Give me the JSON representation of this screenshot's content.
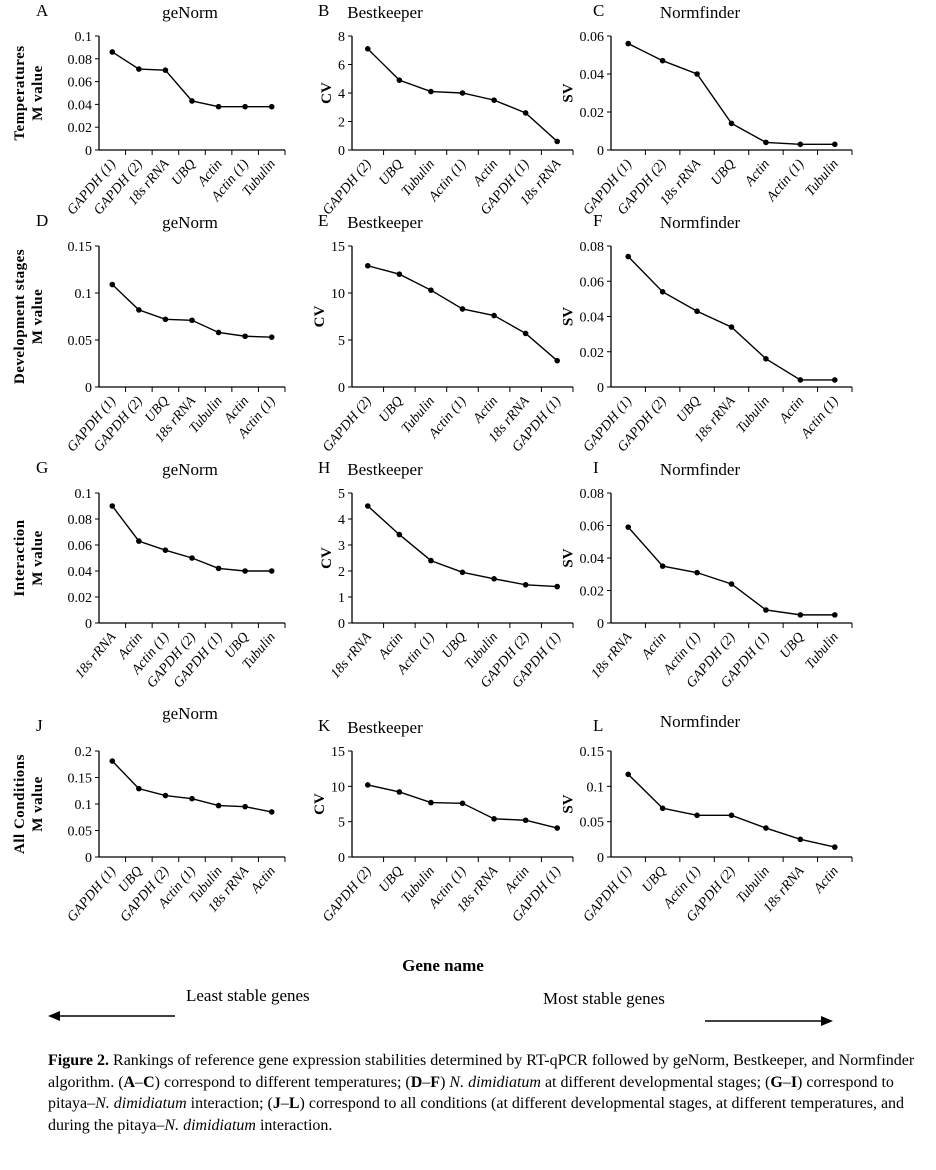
{
  "figure": {
    "gene_axis_label": "Gene name",
    "least_stable": "Least stable genes",
    "most_stable": "Most stable genes",
    "caption": [
      {
        "t": "Figure 2.",
        "s": "b"
      },
      {
        "t": "  Rankings of reference gene expression stabilities determined by RT-qPCR followed by geNorm, Bestkeeper, and Normfinder algorithm. (",
        "s": ""
      },
      {
        "t": "A",
        "s": "b"
      },
      {
        "t": "–",
        "s": ""
      },
      {
        "t": "C",
        "s": "b"
      },
      {
        "t": ") correspond to different temperatures; (",
        "s": ""
      },
      {
        "t": "D",
        "s": "b"
      },
      {
        "t": "–",
        "s": ""
      },
      {
        "t": "F",
        "s": "b"
      },
      {
        "t": ") ",
        "s": ""
      },
      {
        "t": "N. dimidiatum",
        "s": "i"
      },
      {
        "t": " at different developmental stages; (",
        "s": ""
      },
      {
        "t": "G",
        "s": "b"
      },
      {
        "t": "–",
        "s": ""
      },
      {
        "t": "I",
        "s": "b"
      },
      {
        "t": ") correspond to pitaya–",
        "s": ""
      },
      {
        "t": "N. dimidiatum",
        "s": "i"
      },
      {
        "t": " interaction; (",
        "s": ""
      },
      {
        "t": "J",
        "s": "b"
      },
      {
        "t": "–",
        "s": ""
      },
      {
        "t": "L",
        "s": "b"
      },
      {
        "t": ") correspond to all conditions (at different developmental stages, at different temperatures, and during the pitaya–",
        "s": ""
      },
      {
        "t": "N. dimidiatum",
        "s": "i"
      },
      {
        "t": " interaction.",
        "s": ""
      }
    ]
  },
  "chart_data": [
    {
      "panel": "A",
      "type": "line",
      "title": "geNorm",
      "row_label": "Temperatures",
      "ylabel": "M value",
      "ylim": [
        0,
        0.1
      ],
      "yticks": [
        "0",
        "0.02",
        "0.04",
        "0.06",
        "0.08",
        "0.1"
      ],
      "categories": [
        "GAPDH (1)",
        "GAPDH (2)",
        "18s rRNA",
        "UBQ",
        "Actin",
        "Actin (1)",
        "Tubulin"
      ],
      "values": [
        0.086,
        0.071,
        0.07,
        0.043,
        0.038,
        0.038,
        0.038
      ]
    },
    {
      "panel": "B",
      "type": "line",
      "title": "Bestkeeper",
      "ylabel": "CV",
      "ylim": [
        0,
        8
      ],
      "yticks": [
        "0",
        "2",
        "4",
        "6",
        "8"
      ],
      "categories": [
        "GAPDH (2)",
        "UBQ",
        "Tubulin",
        "Actin (1)",
        "Actin",
        "GAPDH (1)",
        "18s rRNA"
      ],
      "values": [
        7.1,
        4.9,
        4.1,
        4.0,
        3.5,
        2.6,
        0.6
      ]
    },
    {
      "panel": "C",
      "type": "line",
      "title": "Normfinder",
      "ylabel": "SV",
      "ylim": [
        0,
        0.06
      ],
      "yticks": [
        "0",
        "0.02",
        "0.04",
        "0.06"
      ],
      "categories": [
        "GAPDH (1)",
        "GAPDH (2)",
        "18s rRNA",
        "UBQ",
        "Actin",
        "Actin (1)",
        "Tubulin"
      ],
      "values": [
        0.056,
        0.047,
        0.04,
        0.014,
        0.004,
        0.003,
        0.003
      ]
    },
    {
      "panel": "D",
      "type": "line",
      "title": "geNorm",
      "row_label": "Development stages",
      "ylabel": "M value",
      "ylim": [
        0,
        0.15
      ],
      "yticks": [
        "0",
        "0.05",
        "0.1",
        "0.15"
      ],
      "categories": [
        "GAPDH (1)",
        "GAPDH (2)",
        "UBQ",
        "18s rRNA",
        "Tubulin",
        "Actin",
        "Actin (1)"
      ],
      "values": [
        0.109,
        0.082,
        0.072,
        0.071,
        0.058,
        0.054,
        0.053
      ]
    },
    {
      "panel": "E",
      "type": "line",
      "title": "Bestkeeper",
      "ylabel": "CV",
      "ylim": [
        0,
        15
      ],
      "yticks": [
        "0",
        "5",
        "10",
        "15"
      ],
      "categories": [
        "GAPDH (2)",
        "UBQ",
        "Tubulin",
        "Actin (1)",
        "Actin",
        "18s rRNA",
        "GAPDH (1)"
      ],
      "values": [
        12.9,
        12.0,
        10.3,
        8.3,
        7.6,
        5.7,
        2.8
      ]
    },
    {
      "panel": "F",
      "type": "line",
      "title": "Normfinder",
      "ylabel": "SV",
      "ylim": [
        0,
        0.08
      ],
      "yticks": [
        "0",
        "0.02",
        "0.04",
        "0.06",
        "0.08"
      ],
      "categories": [
        "GAPDH (1)",
        "GAPDH (2)",
        "UBQ",
        "18s rRNA",
        "Tubulin",
        "Actin",
        "Actin (1)"
      ],
      "values": [
        0.074,
        0.054,
        0.043,
        0.034,
        0.016,
        0.004,
        0.004
      ]
    },
    {
      "panel": "G",
      "type": "line",
      "title": "geNorm",
      "row_label": "Interaction",
      "ylabel": "M value",
      "ylim": [
        0,
        0.1
      ],
      "yticks": [
        "0",
        "0.02",
        "0.04",
        "0.06",
        "0.08",
        "0.1"
      ],
      "categories": [
        "18s rRNA",
        "Actin",
        "Actin (1)",
        "GAPDH (2)",
        "GAPDH (1)",
        "UBQ",
        "Tubulin"
      ],
      "values": [
        0.09,
        0.063,
        0.056,
        0.05,
        0.042,
        0.04,
        0.04
      ]
    },
    {
      "panel": "H",
      "type": "line",
      "title": "Bestkeeper",
      "ylabel": "CV",
      "ylim": [
        0,
        5
      ],
      "yticks": [
        "0",
        "1",
        "2",
        "3",
        "4",
        "5"
      ],
      "categories": [
        "18s rRNA",
        "Actin",
        "Actin (1)",
        "UBQ",
        "Tubulin",
        "GAPDH (2)",
        "GAPDH (1)"
      ],
      "values": [
        4.5,
        3.4,
        2.4,
        1.95,
        1.7,
        1.47,
        1.4
      ]
    },
    {
      "panel": "I",
      "type": "line",
      "title": "Normfinder",
      "ylabel": "SV",
      "ylim": [
        0,
        0.08
      ],
      "yticks": [
        "0",
        "0.02",
        "0.04",
        "0.06",
        "0.08"
      ],
      "categories": [
        "18s rRNA",
        "Actin",
        "Actin (1)",
        "GAPDH (2)",
        "GAPDH (1)",
        "UBQ",
        "Tubulin"
      ],
      "values": [
        0.059,
        0.035,
        0.031,
        0.024,
        0.008,
        0.005,
        0.005
      ]
    },
    {
      "panel": "J",
      "type": "line",
      "title": "geNorm",
      "row_label": "All Conditions",
      "ylabel": "M value",
      "ylim": [
        0,
        0.2
      ],
      "yticks": [
        "0",
        "0.05",
        "0.1",
        "0.15",
        "0.2"
      ],
      "categories": [
        "GAPDH (1)",
        "UBQ",
        "GAPDH (2)",
        "Actin (1)",
        "Tubulin",
        "18s rRNA",
        "Actin"
      ],
      "values": [
        0.181,
        0.129,
        0.116,
        0.11,
        0.097,
        0.095,
        0.085
      ]
    },
    {
      "panel": "K",
      "type": "line",
      "title": "Bestkeeper",
      "ylabel": "CV",
      "ylim": [
        0,
        15
      ],
      "yticks": [
        "0",
        "5",
        "10",
        "15"
      ],
      "categories": [
        "GAPDH (2)",
        "UBQ",
        "Tubulin",
        "Actin (1)",
        "18s rRNA",
        "Actin",
        "GAPDH (1)"
      ],
      "values": [
        10.2,
        9.2,
        7.7,
        7.6,
        5.4,
        5.2,
        4.1
      ]
    },
    {
      "panel": "L",
      "type": "line",
      "title": "Normfinder",
      "ylabel": "SV",
      "ylim": [
        0,
        0.15
      ],
      "yticks": [
        "0",
        "0.05",
        "0.1",
        "0.15"
      ],
      "categories": [
        "GAPDH (1)",
        "UBQ",
        "Actin (1)",
        "GAPDH (2)",
        "Tubulin",
        "18s rRNA",
        "Actin"
      ],
      "values": [
        0.117,
        0.069,
        0.059,
        0.059,
        0.041,
        0.025,
        0.014
      ]
    }
  ]
}
